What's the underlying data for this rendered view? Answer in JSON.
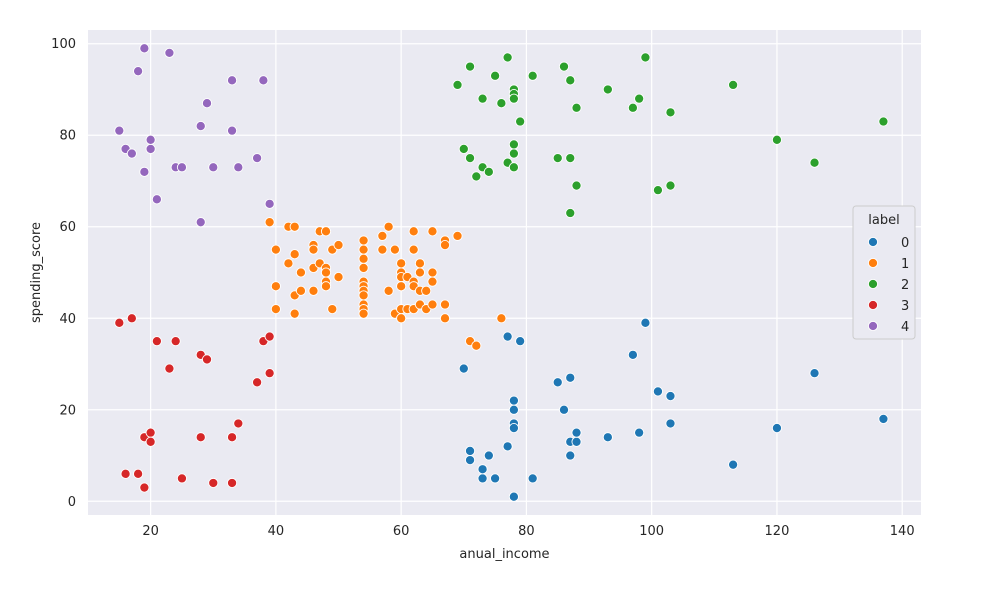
{
  "chart_data": {
    "type": "scatter",
    "title": "",
    "xlabel": "anual_income",
    "ylabel": "spending_score",
    "xlim": [
      10,
      143
    ],
    "ylim": [
      -3,
      103
    ],
    "xticks": [
      20,
      40,
      60,
      80,
      100,
      120,
      140
    ],
    "yticks": [
      0,
      20,
      40,
      60,
      80,
      100
    ],
    "grid": true,
    "legend": {
      "title": "label",
      "placement": "right"
    },
    "series": [
      {
        "name": "0",
        "color": "#1f77b4",
        "points": [
          [
            70,
            29
          ],
          [
            71,
            11
          ],
          [
            71,
            9
          ],
          [
            73,
            5
          ],
          [
            73,
            7
          ],
          [
            74,
            10
          ],
          [
            75,
            5
          ],
          [
            77,
            12
          ],
          [
            77,
            36
          ],
          [
            78,
            22
          ],
          [
            78,
            20
          ],
          [
            78,
            17
          ],
          [
            78,
            16
          ],
          [
            78,
            1
          ],
          [
            79,
            35
          ],
          [
            81,
            5
          ],
          [
            85,
            26
          ],
          [
            86,
            20
          ],
          [
            87,
            27
          ],
          [
            87,
            13
          ],
          [
            87,
            10
          ],
          [
            88,
            13
          ],
          [
            88,
            15
          ],
          [
            93,
            14
          ],
          [
            97,
            32
          ],
          [
            98,
            15
          ],
          [
            99,
            39
          ],
          [
            101,
            24
          ],
          [
            103,
            23
          ],
          [
            103,
            17
          ],
          [
            113,
            8
          ],
          [
            120,
            16
          ],
          [
            126,
            28
          ],
          [
            137,
            18
          ]
        ]
      },
      {
        "name": "1",
        "color": "#ff7f0e",
        "points": [
          [
            39,
            61
          ],
          [
            40,
            55
          ],
          [
            40,
            47
          ],
          [
            40,
            42
          ],
          [
            42,
            60
          ],
          [
            42,
            52
          ],
          [
            43,
            60
          ],
          [
            43,
            54
          ],
          [
            43,
            45
          ],
          [
            43,
            41
          ],
          [
            44,
            50
          ],
          [
            44,
            46
          ],
          [
            46,
            56
          ],
          [
            46,
            55
          ],
          [
            46,
            51
          ],
          [
            46,
            46
          ],
          [
            47,
            59
          ],
          [
            47,
            52
          ],
          [
            48,
            59
          ],
          [
            48,
            51
          ],
          [
            48,
            50
          ],
          [
            48,
            48
          ],
          [
            48,
            47
          ],
          [
            49,
            55
          ],
          [
            49,
            42
          ],
          [
            50,
            56
          ],
          [
            50,
            49
          ],
          [
            54,
            57
          ],
          [
            54,
            55
          ],
          [
            54,
            53
          ],
          [
            54,
            51
          ],
          [
            54,
            48
          ],
          [
            54,
            47
          ],
          [
            54,
            46
          ],
          [
            54,
            45
          ],
          [
            54,
            43
          ],
          [
            54,
            42
          ],
          [
            54,
            41
          ],
          [
            57,
            58
          ],
          [
            57,
            55
          ],
          [
            58,
            60
          ],
          [
            58,
            46
          ],
          [
            59,
            55
          ],
          [
            59,
            41
          ],
          [
            60,
            52
          ],
          [
            60,
            50
          ],
          [
            60,
            49
          ],
          [
            60,
            47
          ],
          [
            60,
            42
          ],
          [
            60,
            40
          ],
          [
            61,
            49
          ],
          [
            61,
            42
          ],
          [
            62,
            59
          ],
          [
            62,
            55
          ],
          [
            62,
            48
          ],
          [
            62,
            47
          ],
          [
            62,
            42
          ],
          [
            63,
            52
          ],
          [
            63,
            50
          ],
          [
            63,
            46
          ],
          [
            63,
            43
          ],
          [
            64,
            46
          ],
          [
            64,
            42
          ],
          [
            65,
            59
          ],
          [
            65,
            50
          ],
          [
            65,
            48
          ],
          [
            65,
            43
          ],
          [
            67,
            57
          ],
          [
            67,
            56
          ],
          [
            67,
            43
          ],
          [
            67,
            40
          ],
          [
            69,
            58
          ],
          [
            71,
            35
          ],
          [
            72,
            34
          ],
          [
            76,
            40
          ]
        ]
      },
      {
        "name": "2",
        "color": "#2ca02c",
        "points": [
          [
            69,
            91
          ],
          [
            70,
            77
          ],
          [
            71,
            95
          ],
          [
            71,
            75
          ],
          [
            72,
            71
          ],
          [
            73,
            88
          ],
          [
            73,
            73
          ],
          [
            74,
            72
          ],
          [
            75,
            93
          ],
          [
            76,
            87
          ],
          [
            77,
            97
          ],
          [
            77,
            74
          ],
          [
            78,
            90
          ],
          [
            78,
            89
          ],
          [
            78,
            88
          ],
          [
            78,
            78
          ],
          [
            78,
            76
          ],
          [
            78,
            73
          ],
          [
            79,
            83
          ],
          [
            81,
            93
          ],
          [
            85,
            75
          ],
          [
            86,
            95
          ],
          [
            87,
            92
          ],
          [
            87,
            75
          ],
          [
            87,
            63
          ],
          [
            88,
            86
          ],
          [
            88,
            69
          ],
          [
            93,
            90
          ],
          [
            97,
            86
          ],
          [
            98,
            88
          ],
          [
            99,
            97
          ],
          [
            101,
            68
          ],
          [
            103,
            85
          ],
          [
            103,
            69
          ],
          [
            113,
            91
          ],
          [
            120,
            79
          ],
          [
            126,
            74
          ],
          [
            137,
            83
          ]
        ]
      },
      {
        "name": "3",
        "color": "#d62728",
        "points": [
          [
            15,
            39
          ],
          [
            16,
            6
          ],
          [
            17,
            40
          ],
          [
            18,
            6
          ],
          [
            19,
            3
          ],
          [
            19,
            14
          ],
          [
            20,
            15
          ],
          [
            20,
            13
          ],
          [
            21,
            35
          ],
          [
            23,
            29
          ],
          [
            24,
            35
          ],
          [
            25,
            5
          ],
          [
            28,
            32
          ],
          [
            28,
            14
          ],
          [
            29,
            31
          ],
          [
            30,
            4
          ],
          [
            33,
            4
          ],
          [
            33,
            14
          ],
          [
            34,
            17
          ],
          [
            37,
            26
          ],
          [
            38,
            35
          ],
          [
            39,
            36
          ],
          [
            39,
            28
          ]
        ]
      },
      {
        "name": "4",
        "color": "#9467bd",
        "points": [
          [
            15,
            81
          ],
          [
            16,
            77
          ],
          [
            17,
            76
          ],
          [
            18,
            94
          ],
          [
            19,
            72
          ],
          [
            19,
            99
          ],
          [
            20,
            77
          ],
          [
            20,
            79
          ],
          [
            21,
            66
          ],
          [
            23,
            98
          ],
          [
            24,
            73
          ],
          [
            25,
            73
          ],
          [
            28,
            82
          ],
          [
            28,
            61
          ],
          [
            29,
            87
          ],
          [
            30,
            73
          ],
          [
            33,
            92
          ],
          [
            33,
            81
          ],
          [
            34,
            73
          ],
          [
            37,
            75
          ],
          [
            38,
            92
          ],
          [
            39,
            65
          ]
        ]
      }
    ]
  }
}
